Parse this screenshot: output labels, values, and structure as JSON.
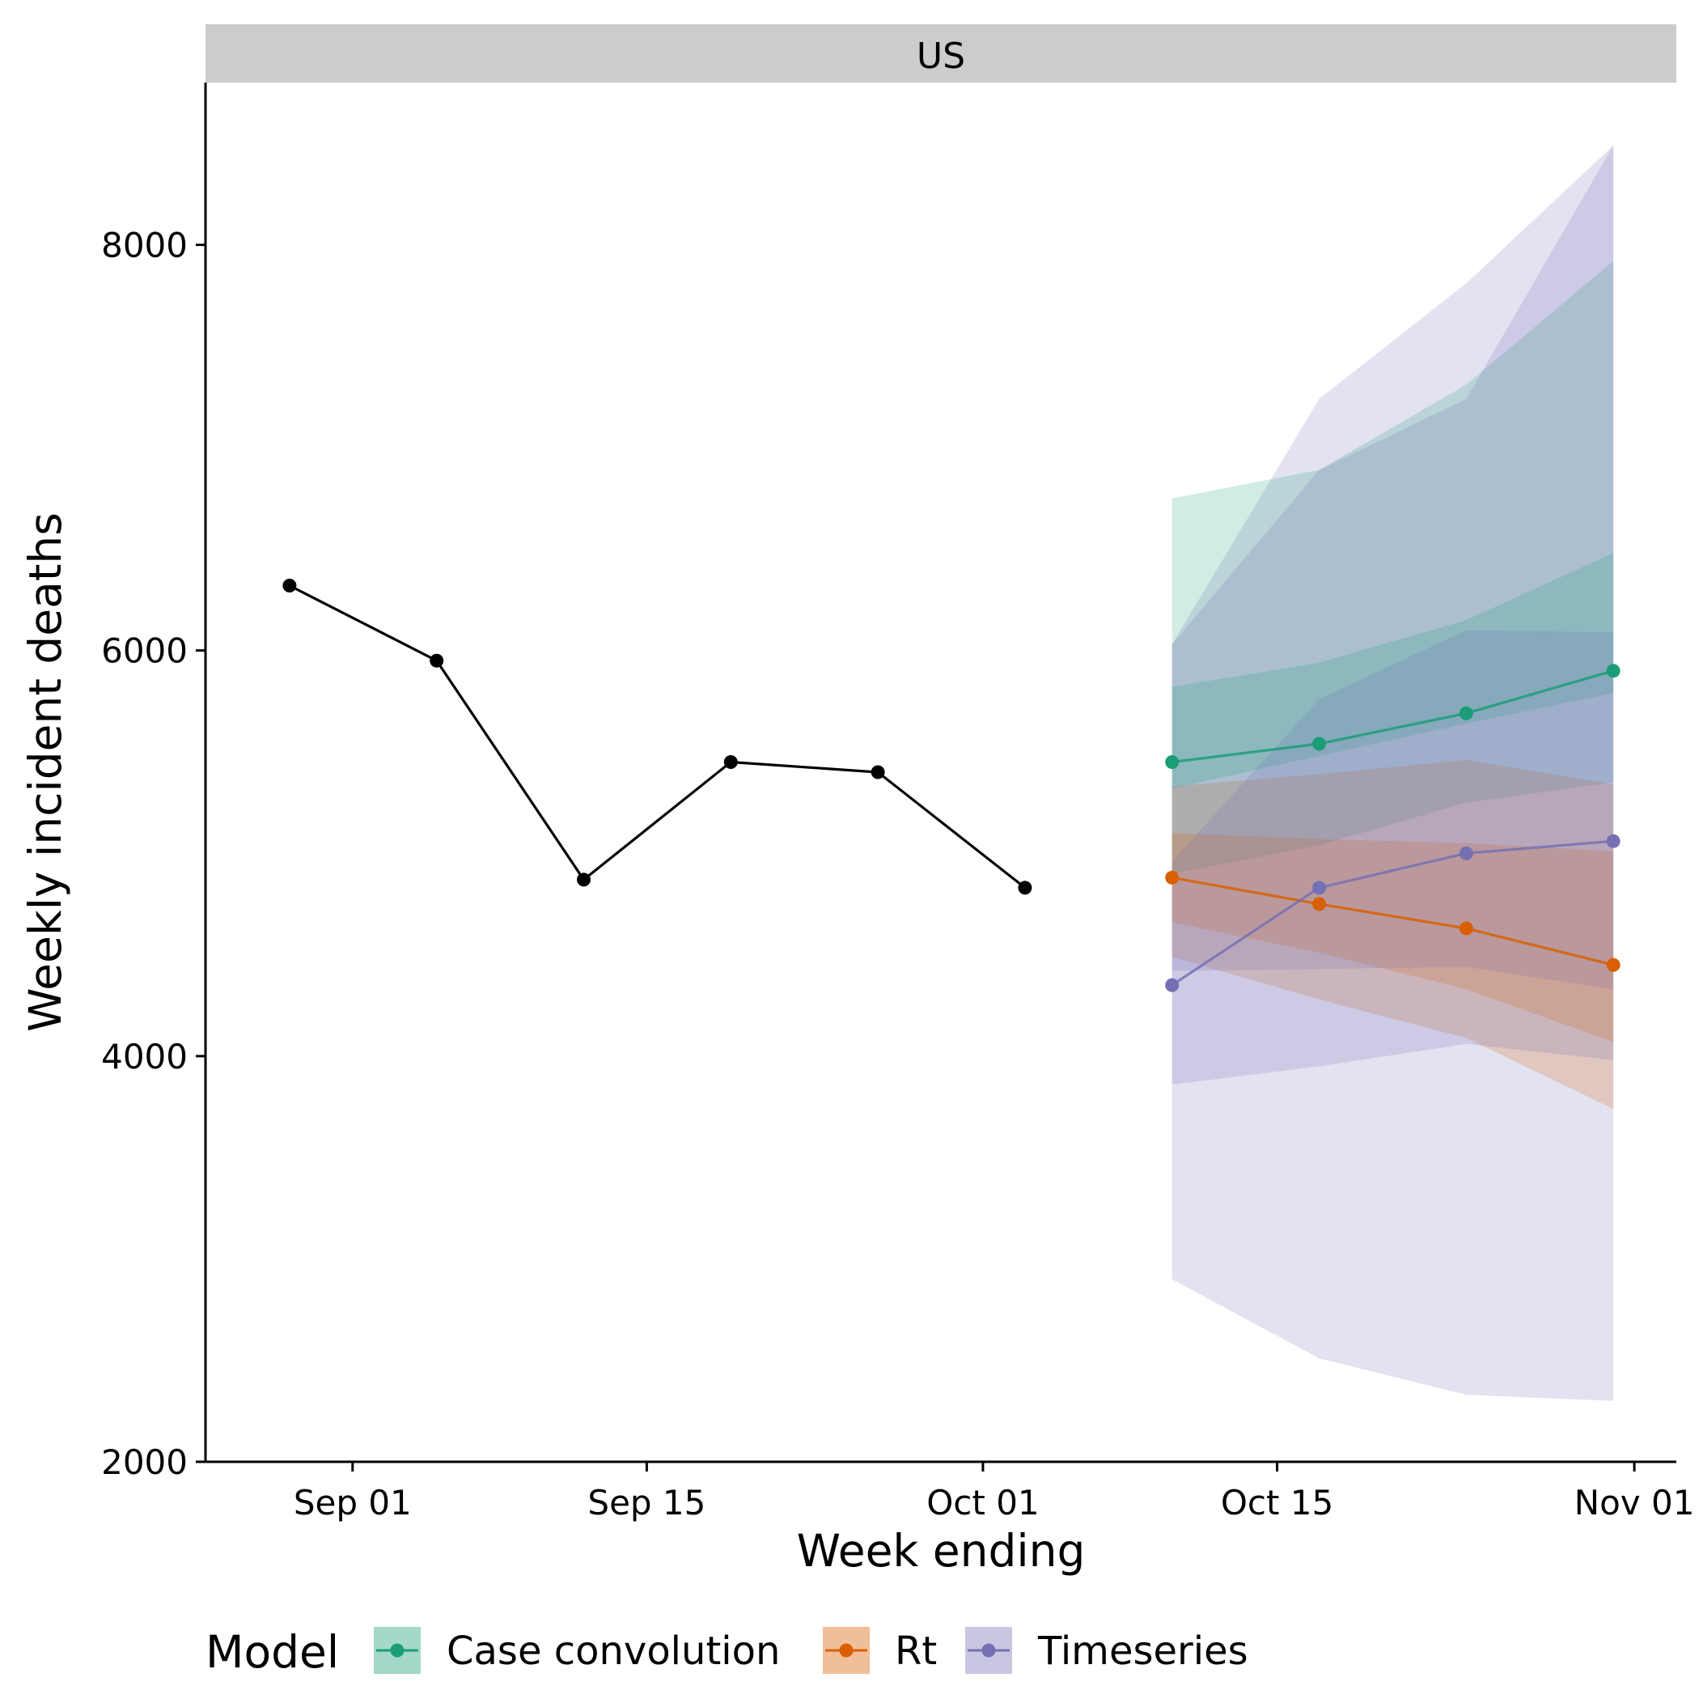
{
  "chart_data": {
    "type": "line",
    "facet_label": "US",
    "xlabel": "Week ending",
    "ylabel": "Weekly incident deaths",
    "x_ticks": [
      "2020-09-01",
      "2020-09-15",
      "2020-10-01",
      "2020-10-15",
      "2020-11-01"
    ],
    "x_tick_labels": [
      "Sep 01",
      "Sep 15",
      "Oct 01",
      "Oct 15",
      "Nov 01"
    ],
    "x_range": [
      "2020-08-25",
      "2020-11-03"
    ],
    "y_ticks": [
      2000,
      4000,
      6000,
      8000
    ],
    "ylim": [
      2000,
      8800
    ],
    "grid": false,
    "observed": {
      "color": "#000000",
      "points": [
        {
          "x": "2020-08-29",
          "y": 6320
        },
        {
          "x": "2020-09-05",
          "y": 5950
        },
        {
          "x": "2020-09-12",
          "y": 4870
        },
        {
          "x": "2020-09-19",
          "y": 5450
        },
        {
          "x": "2020-09-26",
          "y": 5400
        },
        {
          "x": "2020-10-03",
          "y": 4830
        }
      ]
    },
    "legend": {
      "title": "Model",
      "position": "bottom"
    },
    "series": [
      {
        "name": "Case convolution",
        "color": "#1b9e77",
        "x": [
          "2020-10-10",
          "2020-10-17",
          "2020-10-24",
          "2020-10-31"
        ],
        "median": [
          5450,
          5540,
          5690,
          5900
        ],
        "inner_lower": [
          5320,
          5480,
          5640,
          5790
        ],
        "inner_upper": [
          5820,
          5940,
          6150,
          6480
        ],
        "outer_lower": [
          4900,
          5040,
          5250,
          5350
        ],
        "outer_upper": [
          6750,
          6890,
          7310,
          7920
        ]
      },
      {
        "name": "Rt",
        "color": "#d95f02",
        "x": [
          "2020-10-10",
          "2020-10-17",
          "2020-10-24",
          "2020-10-31"
        ],
        "median": [
          4880,
          4750,
          4630,
          4450
        ],
        "inner_lower": [
          4660,
          4510,
          4330,
          4070
        ],
        "inner_upper": [
          5100,
          5070,
          5050,
          5010
        ],
        "outer_lower": [
          4490,
          4280,
          4090,
          3740
        ],
        "outer_upper": [
          5330,
          5390,
          5460,
          5340
        ]
      },
      {
        "name": "Timeseries",
        "color": "#7570b3",
        "x": [
          "2020-10-10",
          "2020-10-17",
          "2020-10-24",
          "2020-10-31"
        ],
        "median": [
          4350,
          4830,
          5000,
          5060
        ],
        "inner_lower": [
          4420,
          4430,
          4440,
          4330
        ],
        "inner_upper": [
          4960,
          5760,
          6100,
          6090
        ],
        "outer_lower": [
          3860,
          3950,
          4060,
          3980
        ],
        "outer_upper": [
          6030,
          6890,
          7240,
          8490
        ],
        "wide_lower": [
          2900,
          2510,
          2330,
          2300
        ],
        "wide_upper": [
          6030,
          7240,
          7810,
          8490
        ]
      }
    ]
  }
}
